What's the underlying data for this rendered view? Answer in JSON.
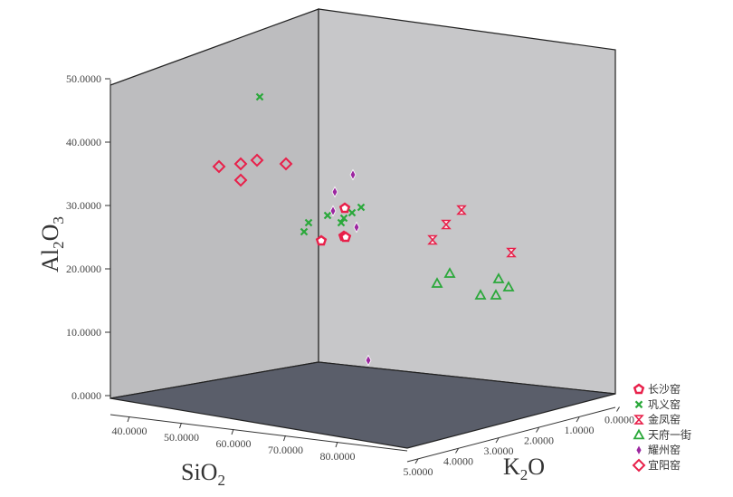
{
  "chart_data": {
    "type": "scatter",
    "projection": "3d",
    "title": "",
    "axes": {
      "x": {
        "label_main": "SiO",
        "label_sub": "2",
        "label_end": "",
        "ticks": [
          "40.0000",
          "50.0000",
          "60.0000",
          "70.0000",
          "80.0000"
        ]
      },
      "y": {
        "label_main": "Al",
        "label_sub": "2",
        "label_mid": "O",
        "label_sub2": "3",
        "ticks": [
          "0.0000",
          "10.0000",
          "20.0000",
          "30.0000",
          "40.0000",
          "50.0000"
        ]
      },
      "z": {
        "label_main": "K",
        "label_sub": "2",
        "label_end": "O",
        "ticks": [
          "5.0000",
          "4.0000",
          "3.0000",
          "2.0000",
          "1.0000",
          "0.0000"
        ]
      }
    },
    "grid": false,
    "legend_position": "bottom-right",
    "series": [
      {
        "name": "长沙窑",
        "marker": "pentagon-open",
        "color": "#e8204a"
      },
      {
        "name": "巩义窑",
        "marker": "x",
        "color": "#2aa83a"
      },
      {
        "name": "金凤窑",
        "marker": "hourglass",
        "color": "#e8204a"
      },
      {
        "name": "天府一街",
        "marker": "triangle-open",
        "color": "#2aa83a"
      },
      {
        "name": "耀州窑",
        "marker": "diamond-filled",
        "color": "#9c27a0"
      },
      {
        "name": "宜阳窑",
        "marker": "diamond-open",
        "color": "#e8204a"
      }
    ],
    "projected_points": [
      {
        "series": 0,
        "p": [
          [
            355,
            266
          ],
          [
            381,
            230
          ],
          [
            380,
            261
          ],
          [
            382,
            262
          ]
        ]
      },
      {
        "series": 1,
        "p": [
          [
            287,
            107
          ],
          [
            336,
            256
          ],
          [
            341,
            246
          ],
          [
            362,
            238
          ],
          [
            377,
            246
          ],
          [
            380,
            241
          ],
          [
            389,
            235
          ],
          [
            399,
            229
          ]
        ]
      },
      {
        "series": 2,
        "p": [
          [
            478,
            265
          ],
          [
            493,
            248
          ],
          [
            510,
            232
          ],
          [
            565,
            279
          ]
        ]
      },
      {
        "series": 3,
        "p": [
          [
            483,
            313
          ],
          [
            497,
            302
          ],
          [
            531,
            326
          ],
          [
            548,
            326
          ],
          [
            551,
            308
          ],
          [
            562,
            317
          ]
        ]
      },
      {
        "series": 4,
        "p": [
          [
            370,
            212
          ],
          [
            390,
            193
          ],
          [
            368,
            233
          ],
          [
            394,
            251
          ],
          [
            407,
            398
          ]
        ]
      },
      {
        "series": 5,
        "p": [
          [
            242,
            184
          ],
          [
            266,
            181
          ],
          [
            284,
            177
          ],
          [
            266,
            199
          ],
          [
            316,
            181
          ]
        ]
      }
    ]
  }
}
